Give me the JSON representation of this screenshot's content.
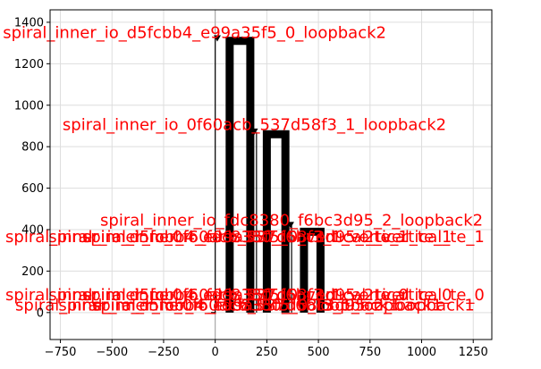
{
  "chart_data": {
    "type": "line",
    "title": "",
    "xlabel": "",
    "ylabel": "",
    "xlim": [
      -800,
      1340
    ],
    "ylim": [
      -130,
      1460
    ],
    "grid": true,
    "xticks": [
      -750,
      -500,
      -250,
      0,
      250,
      500,
      750,
      1000,
      1250
    ],
    "yticks": [
      0,
      200,
      400,
      600,
      800,
      1000,
      1200,
      1400
    ],
    "xtick_labels": [
      "−750",
      "−500",
      "−250",
      "0",
      "250",
      "500",
      "750",
      "1000",
      "1250"
    ],
    "ytick_labels": [
      "0",
      "200",
      "400",
      "600",
      "800",
      "1000",
      "1200",
      "1400"
    ],
    "colors": {
      "trace": "#000000",
      "annotation": "#ff0000",
      "grid": "#dddddd",
      "axis_zero": "#9e9e9e"
    },
    "vertical_line": {
      "x": 0
    },
    "routes": [
      {
        "heavy": [
          [
            70,
            0
          ],
          [
            70,
            1310
          ],
          [
            170,
            1310
          ],
          [
            170,
            0
          ]
        ],
        "thin": [
          [
            -20,
            0
          ],
          [
            0,
            0
          ],
          [
            0,
            1330
          ]
        ],
        "marker": [
          10,
          1320
        ]
      },
      {
        "heavy": [
          [
            250,
            0
          ],
          [
            250,
            860
          ],
          [
            340,
            860
          ],
          [
            340,
            0
          ]
        ],
        "thin": [
          [
            200,
            0
          ],
          [
            200,
            870
          ]
        ],
        "marker": [
          190,
          870
        ]
      },
      {
        "heavy": [
          [
            430,
            0
          ],
          [
            430,
            390
          ],
          [
            510,
            390
          ],
          [
            510,
            0
          ]
        ],
        "thin": [
          [
            370,
            0
          ],
          [
            370,
            420
          ]
        ],
        "marker": [
          365,
          420
        ]
      }
    ],
    "annotations": [
      {
        "text": "spiral_inner_io_d5fcbb4_e99a35f5_0_loopback2",
        "x": -100,
        "y": 1325
      },
      {
        "text": "spiral_inner_io_0f60acb_537d58f3_1_loopback2",
        "x": 190,
        "y": 880
      },
      {
        "text": "spiral_inner_io_fdc8380_f6bc3d95_2_loopback2",
        "x": 370,
        "y": 420
      },
      {
        "text": "spiral_inner_io_fdc8380_f6bc3d95_2_vertical_te_1",
        "x": 330,
        "y": 340
      },
      {
        "text": "spiral_inner_io_0f60acb_537d58f3_1_vertical_te_1",
        "x": 170,
        "y": 340
      },
      {
        "text": "spiral_inner_io_d5fcbb4_e99a35f5_0_vertical_te_1",
        "x": -40,
        "y": 340
      },
      {
        "text": "spiral_inner_io_fdc8380_f6bc3d95_2_vertical_te_0",
        "x": 330,
        "y": 60
      },
      {
        "text": "spiral_inner_io_0f60acb_537d58f3_1_vertical_te_0",
        "x": 170,
        "y": 60
      },
      {
        "text": "spiral_inner_io_d5fcbb4_e99a35f5_0_vertical_te_0",
        "x": -40,
        "y": 60
      },
      {
        "text": "spiral_inner_io_fdc8380_f6bc3d95_2_loopback1",
        "x": 330,
        "y": 10
      },
      {
        "text": "spiral_inner_io_0f60acb_537d58f3_1_loopback1",
        "x": 170,
        "y": 10
      },
      {
        "text": "spiral_inner_io_d5fcbb4_e99a35f5_0_loopback1",
        "x": -40,
        "y": 10
      }
    ]
  }
}
